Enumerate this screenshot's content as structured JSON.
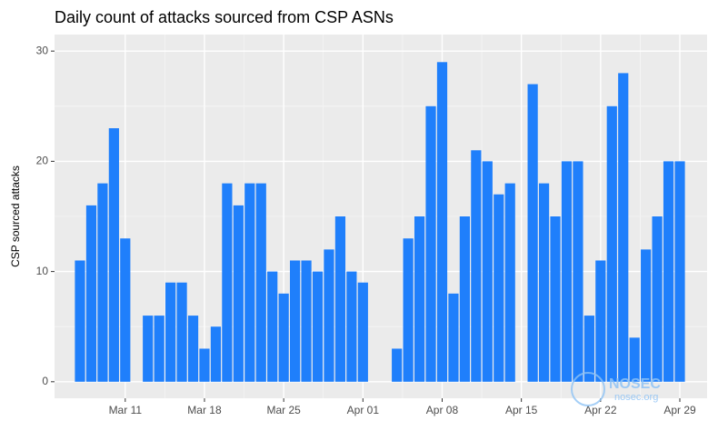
{
  "chart_data": {
    "type": "bar",
    "title": "Daily count of attacks sourced from CSP ASNs",
    "y_label": "CSP sourced attacks",
    "categories": [
      null,
      null,
      null,
      null,
      "Mar 11",
      null,
      null,
      null,
      null,
      null,
      null,
      "Mar 18",
      null,
      null,
      null,
      null,
      null,
      null,
      "Mar 25",
      null,
      null,
      null,
      null,
      null,
      null,
      "Apr 01",
      null,
      null,
      null,
      null,
      null,
      null,
      "Apr 08",
      null,
      null,
      null,
      null,
      null,
      null,
      "Apr 15",
      null,
      null,
      null,
      null,
      null,
      null,
      "Apr 22",
      null,
      null,
      null,
      null,
      null,
      null,
      "Apr 29"
    ],
    "values": [
      11,
      16,
      18,
      23,
      13,
      null,
      6,
      6,
      9,
      9,
      6,
      3,
      5,
      18,
      16,
      18,
      18,
      10,
      8,
      11,
      11,
      10,
      12,
      15,
      10,
      9,
      null,
      null,
      3,
      13,
      15,
      25,
      29,
      8,
      15,
      21,
      20,
      17,
      18,
      null,
      27,
      18,
      15,
      20,
      20,
      6,
      11,
      25,
      28,
      4,
      12,
      15,
      20,
      20
    ],
    "color": "#1f7ffb",
    "ylim": [
      -1.5,
      31.5
    ],
    "yticks": [
      0,
      10,
      20,
      30
    ],
    "grid": true,
    "watermark": {
      "name": "NOSEC",
      "site": "nosec.org"
    }
  }
}
